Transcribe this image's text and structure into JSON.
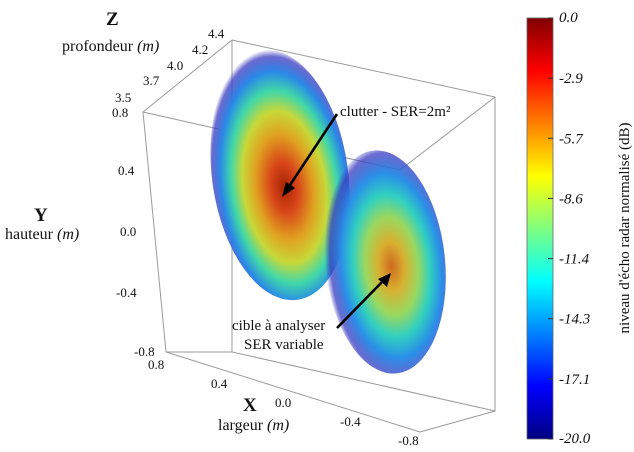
{
  "chart_data": {
    "type": "volume-3d",
    "axes": {
      "x": {
        "letter": "X",
        "label": "largeur",
        "unit": "(m)",
        "ticks": [
          "0.8",
          "0.4",
          "0.0",
          "-0.4",
          "-0.8"
        ]
      },
      "y": {
        "letter": "Y",
        "label": "hauteur",
        "unit": "(m)",
        "ticks": [
          "0.8",
          "0.4",
          "0.0",
          "-0.4",
          "-0.8"
        ]
      },
      "z": {
        "letter": "Z",
        "label": "profondeur",
        "unit": "(m)",
        "ticks": [
          "3.5",
          "3.7",
          "4.0",
          "4.2",
          "4.4"
        ]
      }
    },
    "colorbar": {
      "label": "niveau d'écho radar normalisé (dB)",
      "range": [
        -20.0,
        0.0
      ],
      "ticks": [
        "0.0",
        "-2.9",
        "-5.7",
        "-8.6",
        "-11.4",
        "-14.3",
        "-17.1",
        "-20.0"
      ],
      "colors": [
        "#800000",
        "#ff0000",
        "#ff8000",
        "#ffff00",
        "#80ff80",
        "#00ffff",
        "#0080ff",
        "#0000ff",
        "#000080"
      ]
    },
    "blobs": [
      {
        "name": "clutter",
        "annotation": "clutter - SER=2m²",
        "peak_db": 0.0,
        "x": 0.0,
        "y": 0.25
      },
      {
        "name": "cible",
        "annotation_lines": [
          "cible à analyser",
          "SER variable"
        ],
        "peak_db": -6.0,
        "x": -0.6,
        "y": -0.3
      }
    ]
  }
}
